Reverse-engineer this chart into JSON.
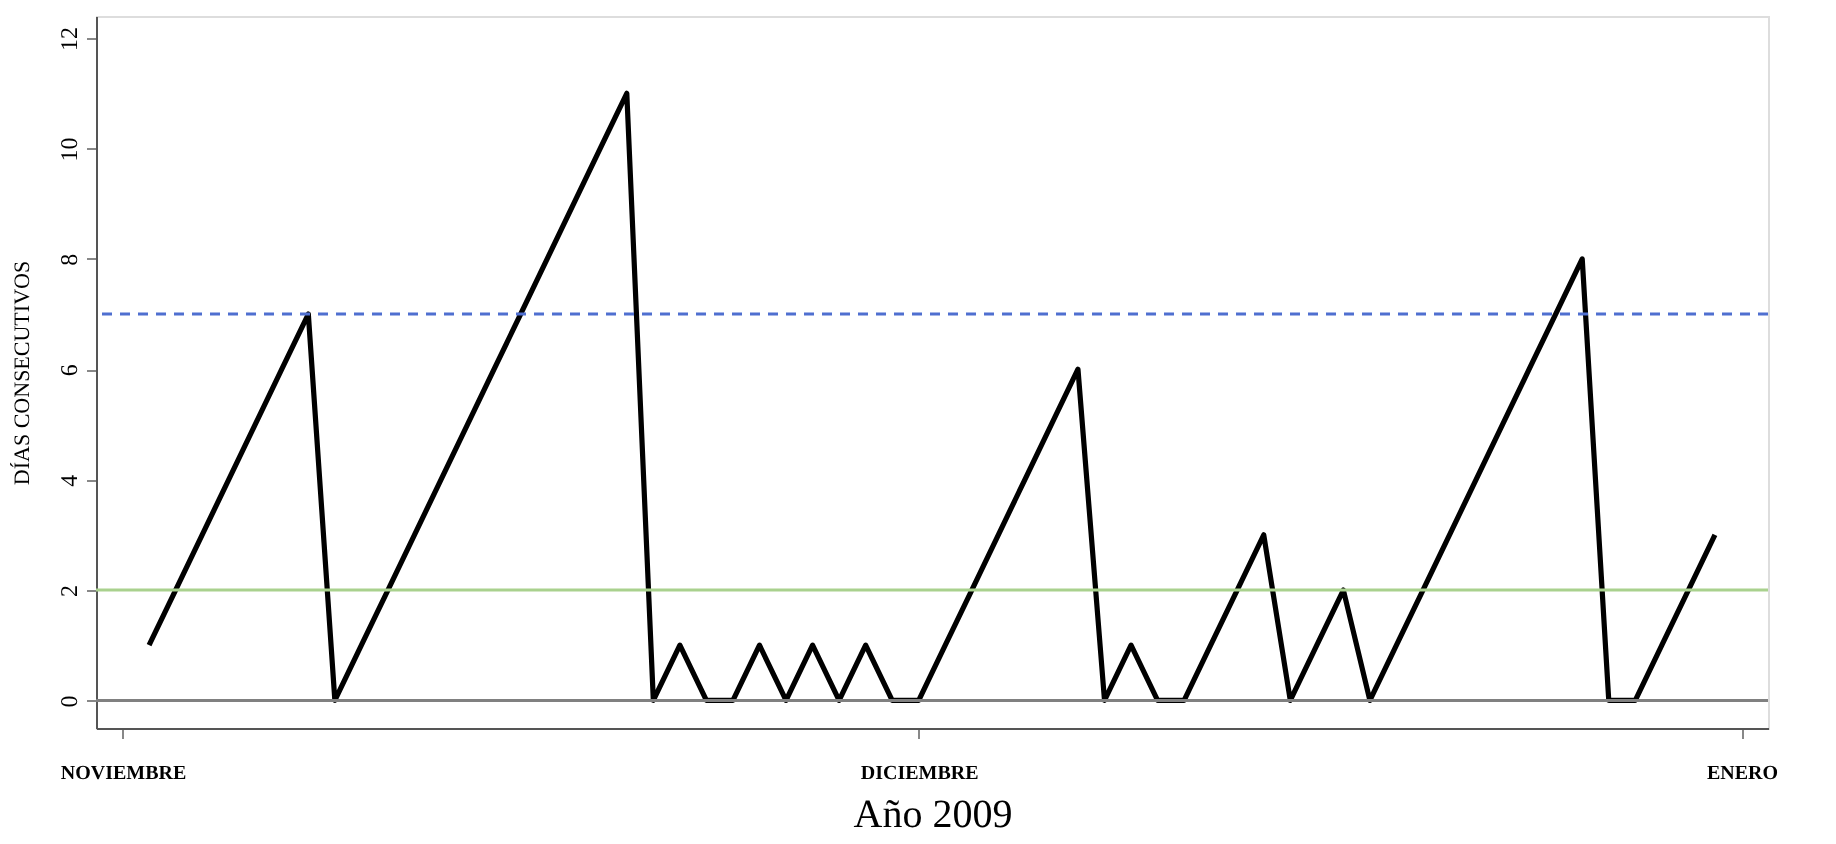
{
  "chart_data": {
    "type": "line",
    "xlabel": "Año 2009",
    "ylabel": "DÍAS CONSECUTIVOS",
    "categories": [
      "NOVIEMBRE",
      null,
      null,
      null,
      null,
      null,
      null,
      null,
      null,
      null,
      null,
      null,
      null,
      null,
      null,
      null,
      null,
      null,
      null,
      null,
      null,
      null,
      null,
      null,
      null,
      null,
      null,
      null,
      null,
      null,
      "DICIEMBRE",
      null,
      null,
      null,
      null,
      null,
      null,
      null,
      null,
      null,
      null,
      null,
      null,
      null,
      null,
      null,
      null,
      null,
      null,
      null,
      null,
      null,
      null,
      null,
      null,
      null,
      null,
      null,
      null,
      null,
      null,
      "ENERO"
    ],
    "series": [
      {
        "color": "#000000",
        "values": [
          null,
          1,
          2,
          3,
          4,
          5,
          6,
          7,
          0,
          1,
          2,
          3,
          4,
          5,
          6,
          7,
          8,
          9,
          10,
          11,
          0,
          1,
          0,
          0,
          1,
          0,
          1,
          0,
          1,
          0,
          0,
          1,
          2,
          3,
          4,
          5,
          6,
          0,
          1,
          0,
          0,
          1,
          2,
          3,
          0,
          1,
          2,
          0,
          1,
          2,
          3,
          4,
          5,
          6,
          7,
          8,
          0,
          0,
          1,
          2,
          3,
          null
        ]
      }
    ],
    "ylim": [
      -0.5,
      12.4
    ],
    "yticks": [
      0,
      2,
      4,
      6,
      8,
      10,
      12
    ],
    "ref_lines": [
      {
        "axis": "y",
        "value": 0,
        "color": "#808080",
        "line_style": "solid"
      },
      {
        "axis": "y",
        "value": 2,
        "color": "#a9d18e",
        "line_style": "solid"
      },
      {
        "axis": "y",
        "value": 7,
        "color": "#4f6fd0",
        "line_style": "dashed"
      }
    ],
    "grid": false,
    "marker": "none",
    "line_style": "solid"
  }
}
